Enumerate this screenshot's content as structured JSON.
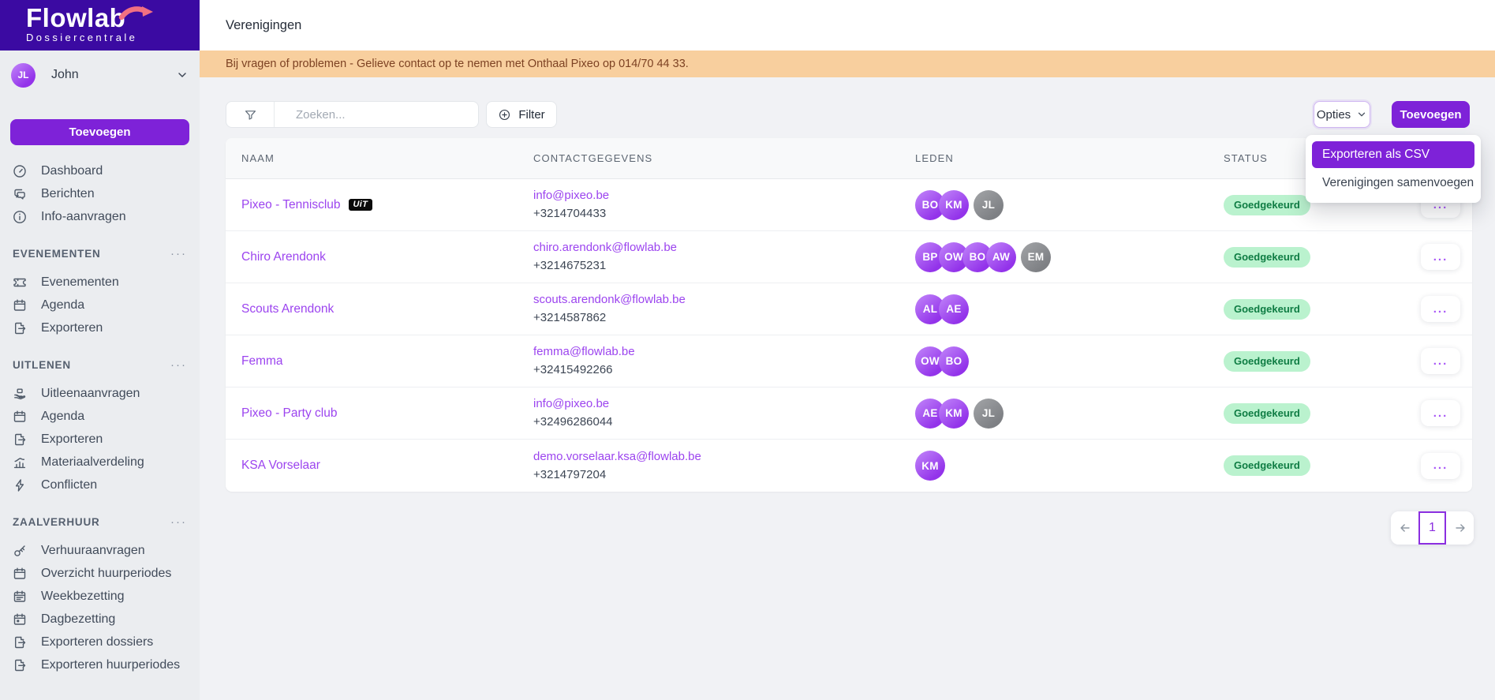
{
  "brand": {
    "name": "Flowlab",
    "subtitle": "Dossiercentrale"
  },
  "user": {
    "initials": "JL",
    "name": "John"
  },
  "sidebar": {
    "add_label": "Toevoegen",
    "primary": [
      {
        "icon": "dashboard-icon",
        "label": "Dashboard"
      },
      {
        "icon": "messages-icon",
        "label": "Berichten"
      },
      {
        "icon": "info-icon",
        "label": "Info-aanvragen"
      }
    ],
    "sections": [
      {
        "title": "EVENEMENTEN",
        "items": [
          {
            "icon": "ticket-icon",
            "label": "Evenementen"
          },
          {
            "icon": "calendar-icon",
            "label": "Agenda"
          },
          {
            "icon": "export-icon",
            "label": "Exporteren"
          }
        ]
      },
      {
        "title": "UITLENEN",
        "items": [
          {
            "icon": "hand-box-icon",
            "label": "Uitleenaanvragen"
          },
          {
            "icon": "calendar-icon",
            "label": "Agenda"
          },
          {
            "icon": "export-icon",
            "label": "Exporteren"
          },
          {
            "icon": "chart-icon",
            "label": "Materiaalverdeling"
          },
          {
            "icon": "bolt-icon",
            "label": "Conflicten"
          }
        ]
      },
      {
        "title": "ZAALVERHUUR",
        "items": [
          {
            "icon": "key-icon",
            "label": "Verhuuraanvragen"
          },
          {
            "icon": "calendar-icon",
            "label": "Overzicht huurperiodes"
          },
          {
            "icon": "calendar-week-icon",
            "label": "Weekbezetting"
          },
          {
            "icon": "calendar-day-icon",
            "label": "Dagbezetting"
          },
          {
            "icon": "export-icon",
            "label": "Exporteren dossiers"
          },
          {
            "icon": "export-icon",
            "label": "Exporteren huurperiodes"
          }
        ]
      }
    ]
  },
  "header": {
    "title": "Verenigingen"
  },
  "banner": {
    "text": "Bij vragen of problemen - Gelieve contact op te nemen met Onthaal Pixeo op 014/70 44 33."
  },
  "toolbar": {
    "search_placeholder": "Zoeken...",
    "filter_label": "Filter",
    "opties_label": "Opties",
    "add_label": "Toevoegen"
  },
  "menu": {
    "items": [
      {
        "label": "Exporteren als CSV",
        "highlighted": true
      },
      {
        "label": "Verenigingen samenvoegen",
        "highlighted": false
      }
    ]
  },
  "table": {
    "columns": [
      "NAAM",
      "CONTACTGEGEVENS",
      "LEDEN",
      "STATUS"
    ],
    "rows": [
      {
        "name": "Pixeo - Tennisclub",
        "uit_badge": "UiT",
        "email": "info@pixeo.be",
        "phone": "+3214704433",
        "members": [
          {
            "initials": "BO",
            "variant": "purple"
          },
          {
            "initials": "KM",
            "variant": "purple"
          },
          {
            "initials": "JL",
            "variant": "gray"
          }
        ],
        "status": "Goedgekeurd"
      },
      {
        "name": "Chiro Arendonk",
        "uit_badge": null,
        "email": "chiro.arendonk@flowlab.be",
        "phone": "+3214675231",
        "members": [
          {
            "initials": "BP",
            "variant": "purple"
          },
          {
            "initials": "OW",
            "variant": "purple"
          },
          {
            "initials": "BO",
            "variant": "purple"
          },
          {
            "initials": "AW",
            "variant": "purple"
          },
          {
            "initials": "EM",
            "variant": "gray"
          }
        ],
        "status": "Goedgekeurd"
      },
      {
        "name": "Scouts Arendonk",
        "uit_badge": null,
        "email": "scouts.arendonk@flowlab.be",
        "phone": "+3214587862",
        "members": [
          {
            "initials": "AL",
            "variant": "purple"
          },
          {
            "initials": "AE",
            "variant": "purple"
          }
        ],
        "status": "Goedgekeurd"
      },
      {
        "name": "Femma",
        "uit_badge": null,
        "email": "femma@flowlab.be",
        "phone": "+32415492266",
        "members": [
          {
            "initials": "OW",
            "variant": "purple"
          },
          {
            "initials": "BO",
            "variant": "purple"
          }
        ],
        "status": "Goedgekeurd"
      },
      {
        "name": "Pixeo - Party club",
        "uit_badge": null,
        "email": "info@pixeo.be",
        "phone": "+32496286044",
        "members": [
          {
            "initials": "AE",
            "variant": "purple"
          },
          {
            "initials": "KM",
            "variant": "purple"
          },
          {
            "initials": "JL",
            "variant": "gray"
          }
        ],
        "status": "Goedgekeurd"
      },
      {
        "name": "KSA Vorselaar",
        "uit_badge": null,
        "email": "demo.vorselaar.ksa@flowlab.be",
        "phone": "+3214797204",
        "members": [
          {
            "initials": "KM",
            "variant": "purple"
          }
        ],
        "status": "Goedgekeurd"
      }
    ],
    "row_actions_label": "..."
  },
  "pagination": {
    "current": "1"
  },
  "colors": {
    "brand_header": "#3b0aa2",
    "accent_purple": "#7e22d8",
    "link_purple": "#9c44ef",
    "status_green_bg": "#baf2ce",
    "status_green_text": "#0e7c43",
    "banner_bg": "#f8cf9e",
    "banner_text": "#7d4223",
    "swoosh_pink": "#f17082"
  }
}
